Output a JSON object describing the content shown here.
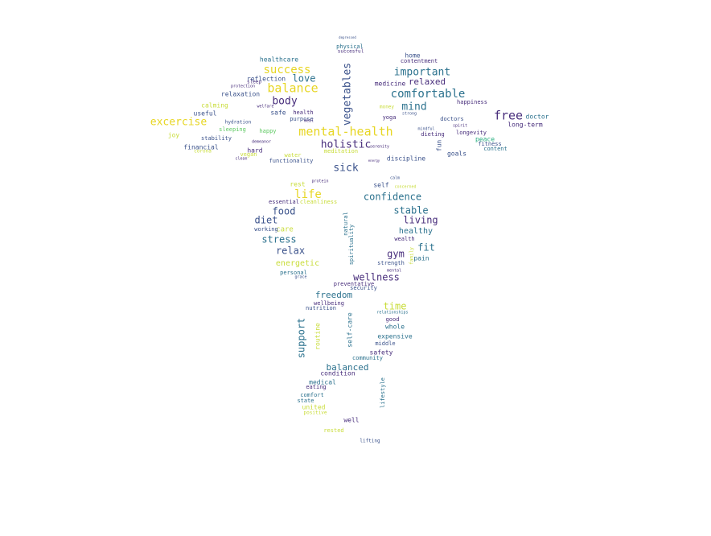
{
  "palette": {
    "purple": "#472d7b",
    "blue": "#3b528b",
    "teal": "#2c728e",
    "green": "#28ae80",
    "lime": "#5ec962",
    "yellow": "#c8dc38",
    "gold": "#e7d624"
  },
  "words": [
    {
      "text": "mental-health",
      "color": "gold"
    },
    {
      "text": "balance",
      "color": "gold"
    },
    {
      "text": "success",
      "color": "gold"
    },
    {
      "text": "comfortable",
      "color": "teal"
    },
    {
      "text": "important",
      "color": "teal"
    },
    {
      "text": "vegetables",
      "color": "blue"
    },
    {
      "text": "love",
      "color": "teal"
    },
    {
      "text": "body",
      "color": "purple"
    },
    {
      "text": "mind",
      "color": "teal"
    },
    {
      "text": "free",
      "color": "purple"
    },
    {
      "text": "excercise",
      "color": "gold"
    },
    {
      "text": "holistic",
      "color": "purple"
    },
    {
      "text": "sick",
      "color": "blue"
    },
    {
      "text": "life",
      "color": "gold"
    },
    {
      "text": "confidence",
      "color": "teal"
    },
    {
      "text": "food",
      "color": "blue"
    },
    {
      "text": "diet",
      "color": "blue"
    },
    {
      "text": "stable",
      "color": "teal"
    },
    {
      "text": "living",
      "color": "purple"
    },
    {
      "text": "healthy",
      "color": "teal"
    },
    {
      "text": "stress",
      "color": "teal"
    },
    {
      "text": "relax",
      "color": "blue"
    },
    {
      "text": "fit",
      "color": "teal"
    },
    {
      "text": "gym",
      "color": "purple"
    },
    {
      "text": "energetic",
      "color": "yellow"
    },
    {
      "text": "wellness",
      "color": "purple"
    },
    {
      "text": "freedom",
      "color": "teal"
    },
    {
      "text": "time",
      "color": "yellow"
    },
    {
      "text": "support",
      "color": "teal"
    },
    {
      "text": "balanced",
      "color": "teal"
    },
    {
      "text": "relaxed",
      "color": "purple"
    },
    {
      "text": "healthcare",
      "color": "teal"
    },
    {
      "text": "reflection",
      "color": "blue"
    },
    {
      "text": "relaxation",
      "color": "blue"
    },
    {
      "text": "calming",
      "color": "yellow"
    },
    {
      "text": "useful",
      "color": "blue"
    },
    {
      "text": "joy",
      "color": "yellow"
    },
    {
      "text": "stability",
      "color": "blue"
    },
    {
      "text": "financial",
      "color": "blue"
    },
    {
      "text": "sleeping",
      "color": "lime"
    },
    {
      "text": "happy",
      "color": "lime"
    },
    {
      "text": "hard",
      "color": "purple"
    },
    {
      "text": "vegan",
      "color": "yellow"
    },
    {
      "text": "safe",
      "color": "blue"
    },
    {
      "text": "health",
      "color": "purple"
    },
    {
      "text": "purpose",
      "color": "blue"
    },
    {
      "text": "meditation",
      "color": "yellow"
    },
    {
      "text": "discipline",
      "color": "blue"
    },
    {
      "text": "yoga",
      "color": "purple"
    },
    {
      "text": "medicine",
      "color": "purple"
    },
    {
      "text": "home",
      "color": "blue"
    },
    {
      "text": "contentment",
      "color": "purple"
    },
    {
      "text": "happiness",
      "color": "purple"
    },
    {
      "text": "doctor",
      "color": "teal"
    },
    {
      "text": "long-term",
      "color": "purple"
    },
    {
      "text": "doctors",
      "color": "blue"
    },
    {
      "text": "longevity",
      "color": "purple"
    },
    {
      "text": "dieting",
      "color": "purple"
    },
    {
      "text": "peace",
      "color": "green"
    },
    {
      "text": "fitness",
      "color": "blue"
    },
    {
      "text": "content",
      "color": "teal"
    },
    {
      "text": "goals",
      "color": "blue"
    },
    {
      "text": "fun",
      "color": "blue"
    },
    {
      "text": "water",
      "color": "yellow"
    },
    {
      "text": "functionality",
      "color": "blue"
    },
    {
      "text": "rest",
      "color": "yellow"
    },
    {
      "text": "essential",
      "color": "purple"
    },
    {
      "text": "cleanliness",
      "color": "yellow"
    },
    {
      "text": "self",
      "color": "blue"
    },
    {
      "text": "care",
      "color": "yellow"
    },
    {
      "text": "working",
      "color": "blue"
    },
    {
      "text": "wealth",
      "color": "purple"
    },
    {
      "text": "pain",
      "color": "teal"
    },
    {
      "text": "strength",
      "color": "blue"
    },
    {
      "text": "personal",
      "color": "teal"
    },
    {
      "text": "preventative",
      "color": "purple"
    },
    {
      "text": "security",
      "color": "blue"
    },
    {
      "text": "wellbeing",
      "color": "purple"
    },
    {
      "text": "nutrition",
      "color": "blue"
    },
    {
      "text": "good",
      "color": "purple"
    },
    {
      "text": "whole",
      "color": "teal"
    },
    {
      "text": "expensive",
      "color": "teal"
    },
    {
      "text": "middle",
      "color": "blue"
    },
    {
      "text": "safety",
      "color": "purple"
    },
    {
      "text": "community",
      "color": "teal"
    },
    {
      "text": "routine",
      "color": "yellow"
    },
    {
      "text": "self-care",
      "color": "teal"
    },
    {
      "text": "condition",
      "color": "purple"
    },
    {
      "text": "medical",
      "color": "teal"
    },
    {
      "text": "eating",
      "color": "purple"
    },
    {
      "text": "comfort",
      "color": "teal"
    },
    {
      "text": "state",
      "color": "teal"
    },
    {
      "text": "united",
      "color": "yellow"
    },
    {
      "text": "positive",
      "color": "yellow"
    },
    {
      "text": "well",
      "color": "purple"
    },
    {
      "text": "rested",
      "color": "yellow"
    },
    {
      "text": "lifting",
      "color": "blue"
    },
    {
      "text": "lifestyle",
      "color": "teal"
    },
    {
      "text": "physical",
      "color": "teal"
    },
    {
      "text": "succesful",
      "color": "purple"
    },
    {
      "text": "natural",
      "color": "teal"
    },
    {
      "text": "spirituality",
      "color": "teal"
    },
    {
      "text": "hydration",
      "color": "blue"
    },
    {
      "text": "demeanor",
      "color": "purple"
    },
    {
      "text": "welfare",
      "color": "purple"
    },
    {
      "text": "protection",
      "color": "purple"
    },
    {
      "text": "sleep",
      "color": "purple"
    },
    {
      "text": "money",
      "color": "yellow"
    },
    {
      "text": "strong",
      "color": "blue"
    },
    {
      "text": "mindful",
      "color": "blue"
    },
    {
      "text": "spirit",
      "color": "purple"
    },
    {
      "text": "serenity",
      "color": "purple"
    },
    {
      "text": "clean",
      "color": "purple"
    },
    {
      "text": "corona",
      "color": "yellow"
    },
    {
      "text": "meal",
      "color": "purple"
    },
    {
      "text": "energy",
      "color": "purple"
    },
    {
      "text": "family",
      "color": "yellow"
    },
    {
      "text": "mental",
      "color": "purple"
    },
    {
      "text": "grace",
      "color": "blue"
    },
    {
      "text": "protein",
      "color": "purple"
    },
    {
      "text": "calm",
      "color": "blue"
    },
    {
      "text": "concerned",
      "color": "yellow"
    },
    {
      "text": "relationships",
      "color": "teal"
    },
    {
      "text": "depressed",
      "color": "blue"
    }
  ]
}
